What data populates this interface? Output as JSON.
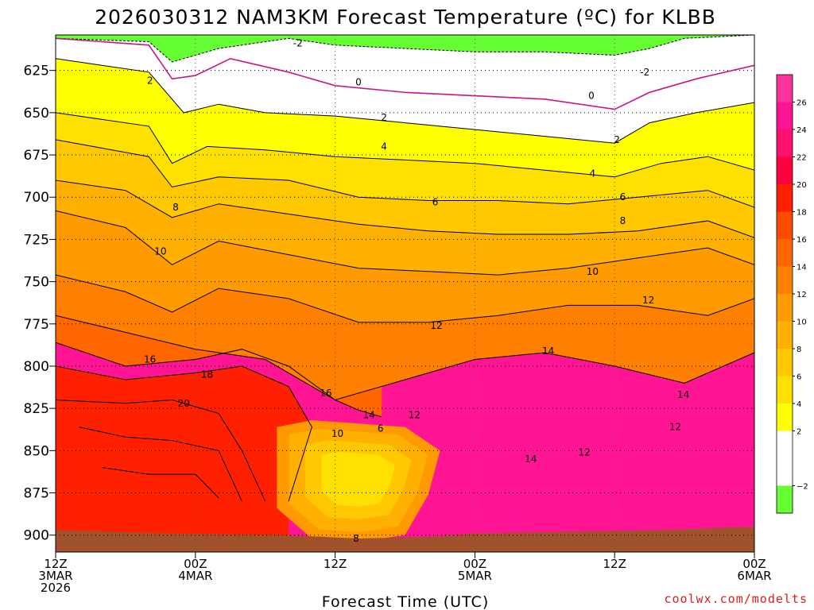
{
  "title": "2026030312 NAM3KM Forecast Temperature (ºC) for KLBB",
  "credit": "coolwx.com/modelts",
  "chart_data": {
    "type": "heatmap",
    "title": "2026030312 NAM3KM Forecast Temperature (ºC) for KLBB",
    "xlabel": "Forecast Time (UTC)",
    "ylabel": "",
    "x_ticks": [
      {
        "hour": 0,
        "lines": [
          "12Z",
          "3MAR",
          "2026"
        ]
      },
      {
        "hour": 12,
        "lines": [
          "00Z",
          "4MAR"
        ]
      },
      {
        "hour": 24,
        "lines": [
          "12Z"
        ]
      },
      {
        "hour": 36,
        "lines": [
          "00Z",
          "5MAR"
        ]
      },
      {
        "hour": 48,
        "lines": [
          "12Z"
        ]
      },
      {
        "hour": 60,
        "lines": [
          "00Z",
          "6MAR"
        ]
      }
    ],
    "xlim": [
      0,
      60
    ],
    "y_ticks": [
      625,
      650,
      675,
      700,
      725,
      750,
      775,
      800,
      825,
      850,
      875,
      900
    ],
    "ylim": [
      604,
      910
    ],
    "y_unit": "hPa",
    "grid": true,
    "ground_color": "#a0522d",
    "levels": [
      {
        "min": -4,
        "max": -2,
        "color": "#66ff33"
      },
      {
        "min": -2,
        "max": 0,
        "color": "#ffffff"
      },
      {
        "min": 0,
        "max": 2,
        "color": "#ffffff"
      },
      {
        "min": 2,
        "max": 4,
        "color": "#ffff00"
      },
      {
        "min": 4,
        "max": 6,
        "color": "#ffe000"
      },
      {
        "min": 6,
        "max": 8,
        "color": "#ffc800"
      },
      {
        "min": 8,
        "max": 10,
        "color": "#ffb000"
      },
      {
        "min": 10,
        "max": 12,
        "color": "#ff9a00"
      },
      {
        "min": 12,
        "max": 14,
        "color": "#ff8000"
      },
      {
        "min": 14,
        "max": 16,
        "color": "#ff6600"
      },
      {
        "min": 16,
        "max": 18,
        "color": "#ff4a00"
      },
      {
        "min": 18,
        "max": 20,
        "color": "#ff2000"
      },
      {
        "min": 20,
        "max": 22,
        "color": "#ff0040"
      },
      {
        "min": 22,
        "max": 24,
        "color": "#ff1070"
      },
      {
        "min": 24,
        "max": 26,
        "color": "#ff1493"
      },
      {
        "min": 26,
        "max": 28,
        "color": "#ff3399"
      }
    ],
    "colorbar_ticks": [
      26,
      24,
      22,
      20,
      18,
      16,
      14,
      12,
      10,
      8,
      6,
      4,
      2,
      -2
    ],
    "series": [
      {
        "name": "-2",
        "values": [
          [
            0,
            606
          ],
          [
            8,
            608
          ],
          [
            10,
            620
          ],
          [
            14,
            612
          ],
          [
            20,
            606
          ],
          [
            24,
            610
          ],
          [
            30,
            612
          ],
          [
            36,
            614
          ],
          [
            42,
            614
          ],
          [
            48,
            616
          ],
          [
            51,
            612
          ],
          [
            54,
            606
          ],
          [
            60,
            604
          ]
        ]
      },
      {
        "name": "0",
        "values": [
          [
            0,
            606
          ],
          [
            8,
            610
          ],
          [
            10,
            630
          ],
          [
            12,
            628
          ],
          [
            15,
            618
          ],
          [
            20,
            626
          ],
          [
            24,
            634
          ],
          [
            30,
            638
          ],
          [
            36,
            640
          ],
          [
            42,
            642
          ],
          [
            48,
            648
          ],
          [
            51,
            638
          ],
          [
            55,
            630
          ],
          [
            60,
            622
          ]
        ]
      },
      {
        "name": "2",
        "values": [
          [
            0,
            618
          ],
          [
            8,
            626
          ],
          [
            11,
            650
          ],
          [
            14,
            645
          ],
          [
            18,
            650
          ],
          [
            24,
            652
          ],
          [
            30,
            656
          ],
          [
            36,
            660
          ],
          [
            42,
            664
          ],
          [
            48,
            668
          ],
          [
            51,
            656
          ],
          [
            55,
            650
          ],
          [
            60,
            644
          ]
        ]
      },
      {
        "name": "4",
        "values": [
          [
            0,
            650
          ],
          [
            8,
            658
          ],
          [
            10,
            680
          ],
          [
            13,
            670
          ],
          [
            18,
            672
          ],
          [
            24,
            676
          ],
          [
            30,
            678
          ],
          [
            36,
            680
          ],
          [
            42,
            684
          ],
          [
            48,
            688
          ],
          [
            52,
            680
          ],
          [
            56,
            676
          ],
          [
            60,
            684
          ]
        ]
      },
      {
        "name": "6",
        "values": [
          [
            0,
            666
          ],
          [
            8,
            676
          ],
          [
            10,
            694
          ],
          [
            14,
            688
          ],
          [
            20,
            690
          ],
          [
            26,
            700
          ],
          [
            32,
            702
          ],
          [
            38,
            702
          ],
          [
            44,
            704
          ],
          [
            50,
            700
          ],
          [
            56,
            696
          ],
          [
            60,
            706
          ]
        ]
      },
      {
        "name": "8",
        "values": [
          [
            0,
            690
          ],
          [
            6,
            696
          ],
          [
            10,
            712
          ],
          [
            14,
            704
          ],
          [
            20,
            710
          ],
          [
            26,
            716
          ],
          [
            32,
            720
          ],
          [
            38,
            722
          ],
          [
            44,
            722
          ],
          [
            50,
            720
          ],
          [
            56,
            714
          ],
          [
            60,
            724
          ]
        ]
      },
      {
        "name": "10",
        "values": [
          [
            0,
            708
          ],
          [
            6,
            718
          ],
          [
            10,
            740
          ],
          [
            14,
            726
          ],
          [
            20,
            734
          ],
          [
            26,
            742
          ],
          [
            32,
            744
          ],
          [
            38,
            746
          ],
          [
            44,
            742
          ],
          [
            50,
            736
          ],
          [
            56,
            730
          ],
          [
            60,
            740
          ]
        ]
      },
      {
        "name": "12",
        "values": [
          [
            0,
            746
          ],
          [
            6,
            756
          ],
          [
            10,
            768
          ],
          [
            14,
            754
          ],
          [
            20,
            760
          ],
          [
            26,
            774
          ],
          [
            32,
            774
          ],
          [
            38,
            770
          ],
          [
            44,
            764
          ],
          [
            50,
            764
          ],
          [
            56,
            770
          ],
          [
            60,
            760
          ]
        ]
      },
      {
        "name": "14",
        "values": [
          [
            0,
            770
          ],
          [
            6,
            780
          ],
          [
            12,
            790
          ],
          [
            18,
            796
          ],
          [
            24,
            820
          ],
          [
            30,
            808
          ],
          [
            36,
            796
          ],
          [
            42,
            792
          ],
          [
            48,
            800
          ],
          [
            54,
            810
          ],
          [
            60,
            792
          ]
        ]
      },
      {
        "name": "16",
        "values": [
          [
            0,
            786
          ],
          [
            6,
            800
          ],
          [
            12,
            796
          ],
          [
            16,
            790
          ],
          [
            20,
            800
          ],
          [
            24,
            820
          ],
          [
            26,
            826
          ],
          [
            28,
            830
          ]
        ]
      },
      {
        "name": "18",
        "values": [
          [
            0,
            800
          ],
          [
            6,
            808
          ],
          [
            12,
            804
          ],
          [
            16,
            800
          ],
          [
            20,
            812
          ],
          [
            22,
            836
          ],
          [
            20,
            880
          ]
        ]
      },
      {
        "name": "20",
        "values": [
          [
            0,
            820
          ],
          [
            6,
            822
          ],
          [
            10,
            820
          ],
          [
            14,
            828
          ],
          [
            16,
            850
          ],
          [
            18,
            880
          ]
        ]
      },
      {
        "name": "22",
        "values": [
          [
            2,
            836
          ],
          [
            6,
            842
          ],
          [
            10,
            844
          ],
          [
            14,
            850
          ],
          [
            16,
            880
          ]
        ]
      },
      {
        "name": "24",
        "values": [
          [
            4,
            860
          ],
          [
            8,
            864
          ],
          [
            12,
            864
          ],
          [
            14,
            878
          ]
        ]
      }
    ],
    "contour_labels": [
      {
        "text": "-2",
        "x": 20.8,
        "y": 609
      },
      {
        "text": "2",
        "x": 8.1,
        "y": 631
      },
      {
        "text": "0",
        "x": 26.0,
        "y": 632
      },
      {
        "text": "0",
        "x": 46.0,
        "y": 640
      },
      {
        "text": "-2",
        "x": 50.6,
        "y": 626
      },
      {
        "text": "2",
        "x": 28.2,
        "y": 653
      },
      {
        "text": "2",
        "x": 48.2,
        "y": 666
      },
      {
        "text": "4",
        "x": 28.2,
        "y": 670
      },
      {
        "text": "4",
        "x": 46.1,
        "y": 686
      },
      {
        "text": "8",
        "x": 10.3,
        "y": 706
      },
      {
        "text": "6",
        "x": 32.6,
        "y": 703
      },
      {
        "text": "6",
        "x": 48.7,
        "y": 700
      },
      {
        "text": "10",
        "x": 9.0,
        "y": 732
      },
      {
        "text": "8",
        "x": 48.7,
        "y": 714
      },
      {
        "text": "10",
        "x": 46.1,
        "y": 744
      },
      {
        "text": "12",
        "x": 50.9,
        "y": 761
      },
      {
        "text": "12",
        "x": 32.7,
        "y": 776
      },
      {
        "text": "16",
        "x": 8.1,
        "y": 796
      },
      {
        "text": "18",
        "x": 13.0,
        "y": 805
      },
      {
        "text": "20",
        "x": 11.0,
        "y": 822
      },
      {
        "text": "16",
        "x": 23.2,
        "y": 816
      },
      {
        "text": "14",
        "x": 42.3,
        "y": 791
      },
      {
        "text": "14",
        "x": 53.9,
        "y": 817
      },
      {
        "text": "14",
        "x": 26.9,
        "y": 829
      },
      {
        "text": "12",
        "x": 30.8,
        "y": 829
      },
      {
        "text": "10",
        "x": 24.2,
        "y": 840
      },
      {
        "text": "6",
        "x": 27.9,
        "y": 837
      },
      {
        "text": "12",
        "x": 53.2,
        "y": 836
      },
      {
        "text": "12",
        "x": 45.4,
        "y": 851
      },
      {
        "text": "14",
        "x": 40.8,
        "y": 855
      },
      {
        "text": "8",
        "x": 25.8,
        "y": 902
      }
    ]
  }
}
